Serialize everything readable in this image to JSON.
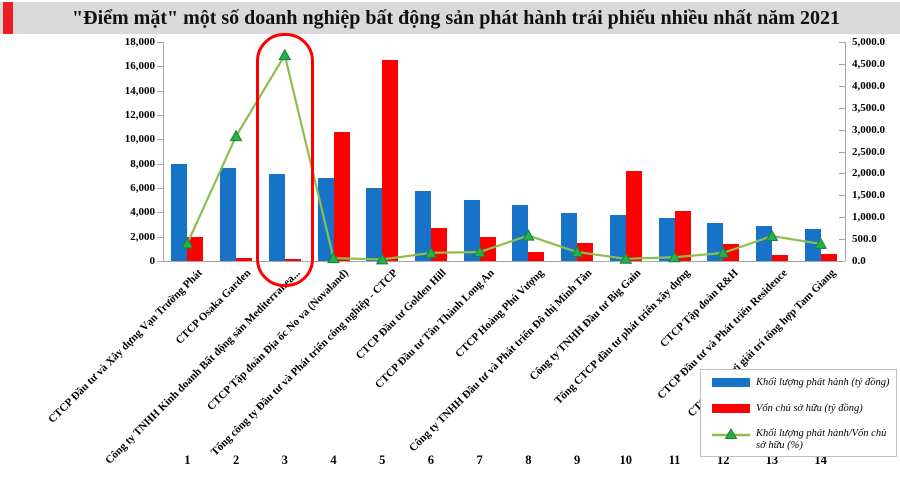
{
  "title": {
    "text": "\"Điểm mặt\" một số doanh nghiệp bất động sản phát hành trái phiếu nhiều nhất năm 2021"
  },
  "colors": {
    "series_blue": "#1673C8",
    "series_red": "#FE0000",
    "line_green": "#8CBE4E",
    "marker_green": "#22B14C",
    "marker_edge": "#1E7E34",
    "title_bg": "#D9D9D9",
    "accent_red": "#EE1C25",
    "highlight_red": "#FF0000",
    "axis_gray": "#A6A6A6"
  },
  "legend": {
    "items": [
      {
        "label": "Khối lượng phát hành (tỷ đồng)",
        "swatch": "blue-bar"
      },
      {
        "label": "Vốn chủ sở hữu (tỷ đồng)",
        "swatch": "red-bar"
      },
      {
        "label": "Khối lượng phát hành/Vốn chủ sở hữu (%)",
        "swatch": "green-line-triangle"
      }
    ]
  },
  "chart_data": {
    "type": "combo (grouped bars + line, dual axis)",
    "title": "\"Điểm mặt\" một số doanh nghiệp bất động sản phát hành trái phiếu nhiều nhất năm 2021",
    "categories": [
      "CTCP Đầu tư và Xây dựng Vạn Trường Phát",
      "CTCP Osaka Garden",
      "Công ty TNHH Kinh doanh Bất động sản Mediterranea...",
      "CTCP Tập đoàn Địa ốc No va (Novaland)",
      "Tổng công ty Đầu tư và Phát triển công nghiệp - CTCP",
      "CTCP Đầu tư Golden Hill",
      "CTCP Đầu tư Tân Thành Long An",
      "CTCP Hoàng Phú Vượng",
      "Công ty TNHH Đầu tư và Phát triển Đô thị Minh Tân",
      "Công ty TNHH Đầu tư Big Gain",
      "Tổng CTCP đầu tư phát triển xây dựng",
      "CTCP Tập đoàn R&H",
      "CTCP Đầu tư và Phát triển Residence",
      "CTCP vui chơi giải trí tổng hợp Tam Giang"
    ],
    "group_numbers": [
      "1",
      "2",
      "3",
      "4",
      "5",
      "6",
      "7",
      "8",
      "9",
      "10",
      "11",
      "12",
      "13",
      "14"
    ],
    "series": [
      {
        "name": "Khối lượng phát hành (tỷ đồng)",
        "type": "bar",
        "axis": "left",
        "color": "#1673C8",
        "values": [
          8000,
          7650,
          7150,
          6850,
          6000,
          5750,
          5000,
          4600,
          3950,
          3800,
          3500,
          3150,
          2900,
          2650
        ]
      },
      {
        "name": "Vốn chủ sở hữu (tỷ đồng)",
        "type": "bar",
        "axis": "left",
        "color": "#FE0000",
        "values": [
          1970,
          250,
          130,
          10600,
          16500,
          2700,
          1950,
          740,
          1480,
          7400,
          4100,
          1400,
          490,
          575
        ]
      },
      {
        "name": "Khối lượng phát hành/Vốn chủ sở hữu (%)",
        "type": "line",
        "axis": "right",
        "color": "#8CBE4E",
        "marker": "triangle",
        "values": [
          400,
          2850,
          4700,
          65,
          36,
          185,
          205,
          580,
          205,
          50,
          85,
          185,
          570,
          390
        ]
      }
    ],
    "left_axis": {
      "min": 0,
      "max": 18000,
      "step": 2000,
      "format": "#,##0"
    },
    "right_axis": {
      "min": 0,
      "max": 5000,
      "step": 500,
      "format": "#,##0.0"
    },
    "grid": "off",
    "legend_position": "bottom-right box",
    "highlight": {
      "group_index": 2,
      "note": "red rounded outline drawn around group 3 column and its green peak"
    }
  }
}
